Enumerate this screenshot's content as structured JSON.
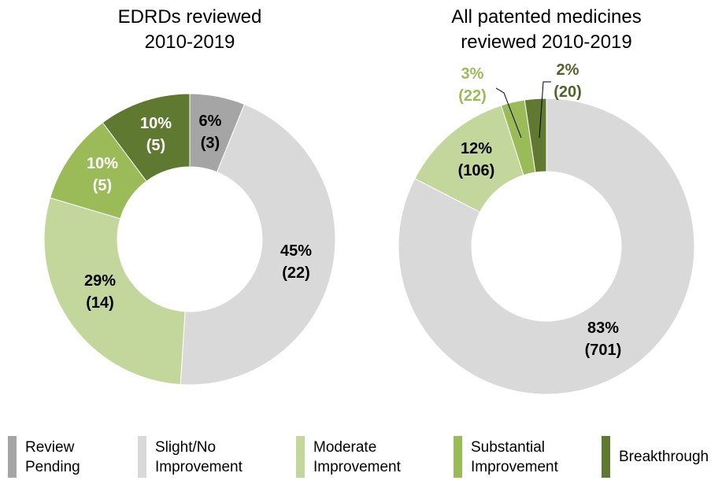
{
  "colors": {
    "review_pending": "#a5a5a5",
    "slight_no_improvement": "#d9d9d9",
    "moderate_improvement": "#c3d69b",
    "substantial_improvement": "#9bbb59",
    "breakthrough": "#5f7a30",
    "label_light_green": "#9bbb59",
    "label_dark_green": "#4f6228"
  },
  "legend": [
    {
      "lines": [
        "Review",
        "Pending"
      ],
      "color": "#a5a5a5"
    },
    {
      "lines": [
        "Slight/No",
        "Improvement"
      ],
      "color": "#d9d9d9"
    },
    {
      "lines": [
        "Moderate",
        "Improvement"
      ],
      "color": "#c3d69b"
    },
    {
      "lines": [
        "Substantial",
        "Improvement"
      ],
      "color": "#9bbb59"
    },
    {
      "lines": [
        "Breakthrough"
      ],
      "color": "#5f7a30"
    }
  ],
  "chart_data": [
    {
      "type": "pie",
      "subtype": "donut",
      "title_lines": [
        "EDRDs reviewed",
        "2010-2019"
      ],
      "categories": [
        "Review Pending",
        "Slight/No Improvement",
        "Moderate Improvement",
        "Substantial Improvement",
        "Breakthrough"
      ],
      "values": [
        3,
        22,
        14,
        5,
        5
      ],
      "percent_labels": [
        "6%",
        "45%",
        "29%",
        "10%",
        "10%"
      ],
      "count_labels": [
        "(3)",
        "(22)",
        "(14)",
        "(5)",
        "(5)"
      ]
    },
    {
      "type": "pie",
      "subtype": "donut",
      "title_lines": [
        "All patented medicines",
        "reviewed 2010-2019"
      ],
      "categories": [
        "Slight/No Improvement",
        "Moderate Improvement",
        "Substantial Improvement",
        "Breakthrough"
      ],
      "values": [
        701,
        106,
        22,
        20
      ],
      "percent_labels": [
        "83%",
        "12%",
        "3%",
        "2%"
      ],
      "count_labels": [
        "(701)",
        "(106)",
        "(22)",
        "(20)"
      ]
    }
  ]
}
